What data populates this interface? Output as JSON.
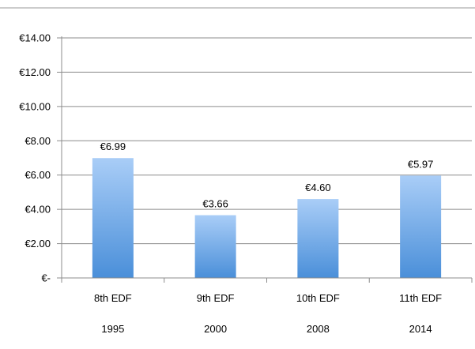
{
  "chart_data": {
    "type": "bar",
    "categories": [
      "8th EDF",
      "9th EDF",
      "10th EDF",
      "11th EDF"
    ],
    "years": [
      "1995",
      "2000",
      "2008",
      "2014"
    ],
    "values": [
      6.99,
      3.66,
      4.6,
      5.97
    ],
    "value_labels": [
      "€6.99",
      "€3.66",
      "€4.60",
      "€5.97"
    ],
    "y_ticks": [
      {
        "value": 0,
        "label": "€-"
      },
      {
        "value": 2,
        "label": "€2.00"
      },
      {
        "value": 4,
        "label": "€4.00"
      },
      {
        "value": 6,
        "label": "€6.00"
      },
      {
        "value": 8,
        "label": "€8.00"
      },
      {
        "value": 10,
        "label": "€10.00"
      },
      {
        "value": 12,
        "label": "€12.00"
      },
      {
        "value": 14,
        "label": "€14.00"
      }
    ],
    "ylim": [
      0,
      14
    ],
    "grid": true,
    "title": "",
    "xlabel": "",
    "ylabel": "",
    "colors": {
      "bar_top": "#a9cdf7",
      "bar_bottom": "#4a8fd9",
      "grid": "#8c8c8c",
      "axis": "#8c8c8c",
      "frame_top": "#9a9a9a"
    }
  }
}
